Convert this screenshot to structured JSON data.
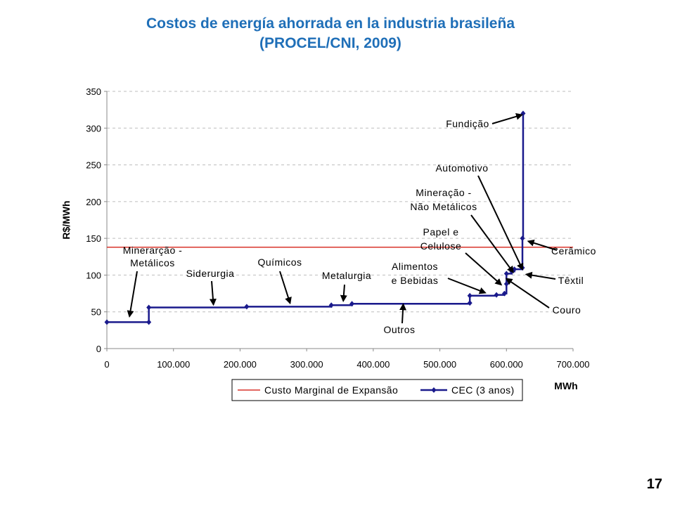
{
  "slide": {
    "title_line1": "Costos de energía ahorrada en la industria brasileña",
    "title_line2": "(PROCEL/CNI, 2009)",
    "page_number": "17"
  },
  "colors": {
    "title": "#1f6fb8",
    "cec": "#1a1a8c",
    "marginal": "#d9342b",
    "grid": "#bdbdbd"
  },
  "chart_data": {
    "type": "line",
    "title": "",
    "xlabel": "MWh",
    "ylabel": "R$/MWh",
    "xlim": [
      0,
      700000
    ],
    "ylim": [
      0,
      350
    ],
    "x_ticks": [
      0,
      100000,
      200000,
      300000,
      400000,
      500000,
      600000,
      700000
    ],
    "x_tick_labels": [
      "0",
      "100.000",
      "200.000",
      "300.000",
      "400.000",
      "500.000",
      "600.000",
      "700.000"
    ],
    "y_ticks": [
      0,
      50,
      100,
      150,
      200,
      250,
      300,
      350
    ],
    "y_tick_labels": [
      "0",
      "50",
      "100",
      "150",
      "200",
      "250",
      "300",
      "350"
    ],
    "grid": "horizontal dashed",
    "legend_placement": "bottom",
    "series": [
      {
        "name": "Custo Marginal de Expansão",
        "style": "line",
        "x": [
          0,
          700000
        ],
        "y": [
          138,
          138
        ]
      },
      {
        "name": "CEC (3 anos)",
        "style": "step-with-markers",
        "x": [
          0,
          63000,
          63000,
          210000,
          337000,
          368000,
          545000,
          545000,
          585000,
          597000,
          600000,
          600000,
          608000,
          612000,
          624000,
          624000,
          625000
        ],
        "y": [
          36,
          36,
          56,
          57,
          59,
          61,
          62,
          72,
          73,
          75,
          88,
          102,
          105,
          108,
          110,
          150,
          320
        ]
      }
    ],
    "annotations": [
      {
        "text_lines": [
          "Minerarção -",
          "Metálicos"
        ],
        "target": [
          34000,
          44
        ]
      },
      {
        "text_lines": [
          "Siderurgia"
        ],
        "target": [
          160000,
          60
        ]
      },
      {
        "text_lines": [
          "Químicos"
        ],
        "target": [
          275000,
          62
        ]
      },
      {
        "text_lines": [
          "Metalurgia"
        ],
        "target": [
          355000,
          65
        ]
      },
      {
        "text_lines": [
          "Alimentos",
          "e Bebidas"
        ],
        "target": [
          568000,
          76
        ]
      },
      {
        "text_lines": [
          "Outros"
        ],
        "target": [
          445000,
          60
        ]
      },
      {
        "text_lines": [
          "Papel e",
          "Celulose"
        ],
        "target": [
          592000,
          87
        ]
      },
      {
        "text_lines": [
          "Mineração -",
          "Não Metálicos"
        ],
        "target": [
          610000,
          104
        ]
      },
      {
        "text_lines": [
          "Automotivo"
        ],
        "target": [
          624000,
          108
        ]
      },
      {
        "text_lines": [
          "Fundição"
        ],
        "target": [
          623000,
          318
        ]
      },
      {
        "text_lines": [
          "Cerâmico"
        ],
        "target": [
          633000,
          146
        ]
      },
      {
        "text_lines": [
          "Têxtil"
        ],
        "target": [
          630000,
          101
        ]
      },
      {
        "text_lines": [
          "Couro"
        ],
        "target": [
          600000,
          95
        ]
      }
    ]
  }
}
